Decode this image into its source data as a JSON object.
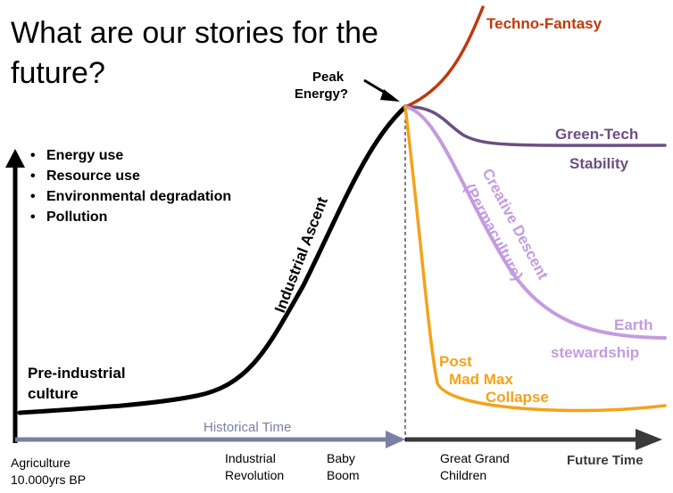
{
  "title": {
    "line1": "What are our stories for the",
    "line2": "future?"
  },
  "bullets": [
    "Energy use",
    "Resource use",
    "Environmental degradation",
    "Pollution"
  ],
  "bullet_glyph": "•",
  "labels": {
    "peak_line1": "Peak",
    "peak_line2": "Energy?",
    "techno_fantasy": "Techno-Fantasy",
    "green_tech": "Green-Tech",
    "stability": "Stability",
    "creative_descent": "Creative Descent",
    "permaculture": "(Permaculture)",
    "earth": "Earth",
    "stewardship": "stewardship",
    "post": "Post",
    "mad_max": "Mad Max",
    "collapse": "Collapse",
    "industrial_ascent": "Industrial Ascent",
    "preindustrial_line1": "Pre-industrial",
    "preindustrial_line2": "culture",
    "historical_time": "Historical Time",
    "future_time": "Future Time"
  },
  "axis_labels": {
    "agriculture_line1": "Agriculture",
    "agriculture_line2": "10.000yrs BP",
    "industrial_line1": "Industrial",
    "industrial_line2": "Revolution",
    "baby_line1": "Baby",
    "baby_line2": "Boom",
    "ggc_line1": "Great Grand",
    "ggc_line2": "Children"
  },
  "colors": {
    "black": "#000000",
    "techno_fantasy": "#c0390b",
    "green_tech": "#6b4f82",
    "creative_descent": "#c49be0",
    "mad_max": "#f5a21a",
    "historical_arrow": "#7b7fa3",
    "historical_text": "#7b7fa3",
    "future_arrow": "#3a3a3a"
  }
}
